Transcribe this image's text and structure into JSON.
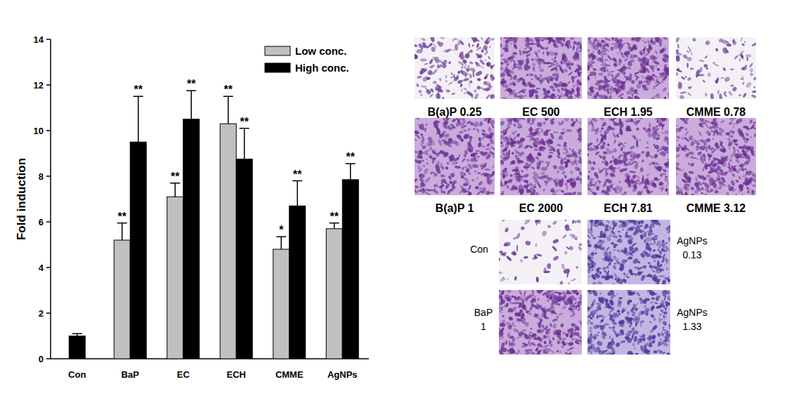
{
  "chart_data": {
    "type": "bar",
    "categories": [
      "Con",
      "BaP",
      "EC",
      "ECH",
      "CMME",
      "AgNPs"
    ],
    "y_label": "Fold induction",
    "ylim": [
      0,
      14
    ],
    "yticks": [
      0,
      2,
      4,
      6,
      8,
      10,
      12,
      14
    ],
    "legend": "upper right",
    "series": [
      {
        "name": "Low conc.",
        "color": "#c0c0c0",
        "values": [
          null,
          5.2,
          7.1,
          10.3,
          4.8,
          5.7
        ],
        "errors": [
          null,
          0.75,
          0.6,
          1.2,
          0.55,
          0.25
        ],
        "significance": [
          null,
          "**",
          "**",
          "**",
          "*",
          "**"
        ]
      },
      {
        "name": "High conc.",
        "color": "#000000",
        "values": [
          1.0,
          9.5,
          10.5,
          8.75,
          6.7,
          7.85
        ],
        "errors": [
          0.1,
          2.0,
          1.25,
          1.35,
          1.1,
          0.7
        ],
        "significance": [
          null,
          "**",
          "**",
          "**",
          "**",
          "**"
        ]
      }
    ]
  },
  "micrographs": {
    "panels": [
      {
        "lines": [
          "B(a)P 0.25"
        ]
      },
      {
        "lines": [
          "EC 500"
        ]
      },
      {
        "lines": [
          "ECH 1.95"
        ]
      },
      {
        "lines": [
          "CMME 0.78"
        ]
      },
      {
        "lines": [
          "B(a)P 1"
        ]
      },
      {
        "lines": [
          "EC 2000"
        ]
      },
      {
        "lines": [
          "ECH 7.81"
        ]
      },
      {
        "lines": [
          "CMME 3.12"
        ]
      },
      {
        "lines": [
          "Con"
        ]
      },
      {
        "lines": [
          "AgNPs",
          "0.13"
        ]
      },
      {
        "lines": [
          "BaP",
          "1"
        ]
      },
      {
        "lines": [
          "AgNPs",
          "1.33"
        ]
      }
    ]
  }
}
